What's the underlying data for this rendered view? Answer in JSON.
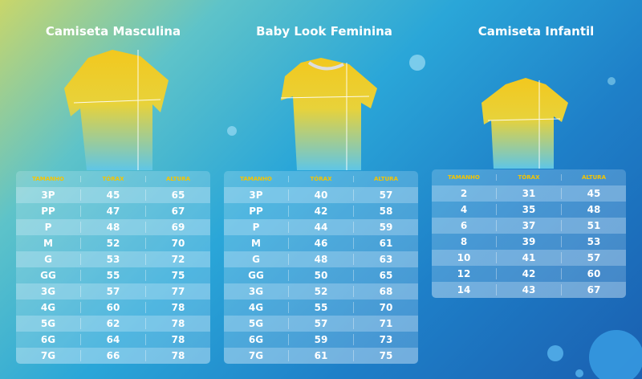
{
  "panels": [
    {
      "title": "Camiseta Masculina",
      "headers": [
        "TAMANHO",
        "TÓRAX",
        "ALTURA"
      ],
      "rows": [
        [
          "3P",
          "45",
          "65"
        ],
        [
          "PP",
          "47",
          "67"
        ],
        [
          "P",
          "48",
          "69"
        ],
        [
          "M",
          "52",
          "70"
        ],
        [
          "G",
          "53",
          "72"
        ],
        [
          "GG",
          "55",
          "75"
        ],
        [
          "3G",
          "57",
          "77"
        ],
        [
          "4G",
          "60",
          "78"
        ],
        [
          "5G",
          "62",
          "78"
        ],
        [
          "6G",
          "64",
          "78"
        ],
        [
          "7G",
          "66",
          "78"
        ]
      ]
    },
    {
      "title": "Baby Look Feminina",
      "headers": [
        "TAMANHO",
        "TÓRAX",
        "ALTURA"
      ],
      "rows": [
        [
          "3P",
          "40",
          "57"
        ],
        [
          "PP",
          "42",
          "58"
        ],
        [
          "P",
          "44",
          "59"
        ],
        [
          "M",
          "46",
          "61"
        ],
        [
          "G",
          "48",
          "63"
        ],
        [
          "GG",
          "50",
          "65"
        ],
        [
          "3G",
          "52",
          "68"
        ],
        [
          "4G",
          "55",
          "70"
        ],
        [
          "5G",
          "57",
          "71"
        ],
        [
          "6G",
          "59",
          "73"
        ],
        [
          "7G",
          "61",
          "75"
        ]
      ]
    },
    {
      "title": "Camiseta Infantil",
      "headers": [
        "TAMANHO",
        "TÓRAX",
        "ALTURA"
      ],
      "rows": [
        [
          "2",
          "31",
          "45"
        ],
        [
          "4",
          "35",
          "48"
        ],
        [
          "6",
          "37",
          "51"
        ],
        [
          "8",
          "39",
          "53"
        ],
        [
          "10",
          "41",
          "57"
        ],
        [
          "12",
          "42",
          "60"
        ],
        [
          "14",
          "43",
          "67"
        ]
      ]
    }
  ]
}
